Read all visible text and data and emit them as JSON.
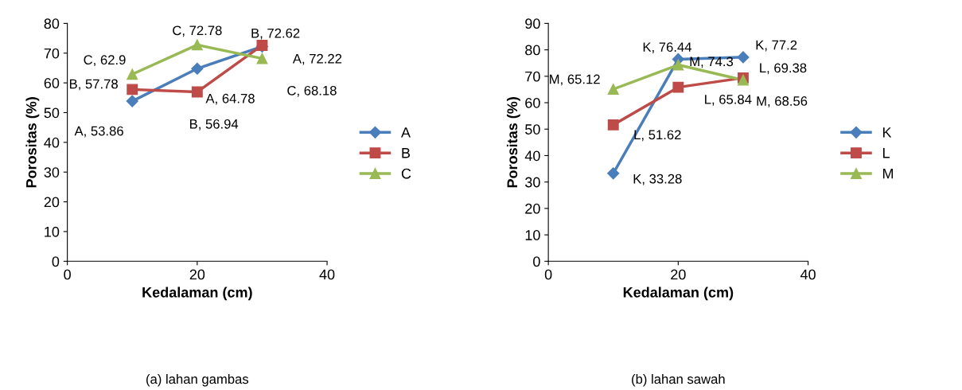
{
  "chart_data": [
    {
      "type": "line",
      "xlabel": "Kedalaman (cm)",
      "ylabel": "Porositas (%)",
      "x": [
        10,
        20,
        30
      ],
      "xlim": [
        0,
        40
      ],
      "xticks": [
        0,
        20,
        40
      ],
      "ylim": [
        0,
        80
      ],
      "yticks": [
        0,
        10,
        20,
        30,
        40,
        50,
        60,
        70,
        80
      ],
      "grid": false,
      "legend": "right",
      "annotations": [
        "(a) lahan gambas"
      ],
      "series": [
        {
          "name": "A",
          "color": "#4a7ebb",
          "marker": "diamond",
          "values": [
            53.86,
            64.78,
            72.22
          ],
          "value_labels": [
            "A, 53.86",
            "A, 64.78",
            "A, 72.22"
          ]
        },
        {
          "name": "B",
          "color": "#be4b48",
          "marker": "square",
          "values": [
            57.78,
            56.94,
            72.62
          ],
          "value_labels": [
            "B, 57.78",
            "B, 56.94",
            "B, 72.62"
          ]
        },
        {
          "name": "C",
          "color": "#98b954",
          "marker": "triangle",
          "values": [
            62.9,
            72.78,
            68.18
          ],
          "value_labels": [
            "C, 62.9",
            "C, 72.78",
            "C, 68.18"
          ]
        }
      ]
    },
    {
      "type": "line",
      "xlabel": "Kedalaman (cm)",
      "ylabel": "Porositas (%)",
      "x": [
        10,
        20,
        30
      ],
      "xlim": [
        0,
        40
      ],
      "xticks": [
        0,
        20,
        40
      ],
      "ylim": [
        0,
        90
      ],
      "yticks": [
        0,
        10,
        20,
        30,
        40,
        50,
        60,
        70,
        80,
        90
      ],
      "grid": false,
      "legend": "right",
      "annotations": [
        "(b) lahan sawah"
      ],
      "series": [
        {
          "name": "K",
          "color": "#4a7ebb",
          "marker": "diamond",
          "values": [
            33.28,
            76.44,
            77.2
          ],
          "value_labels": [
            "K, 33.28",
            "K, 76.44",
            "K, 77.2"
          ]
        },
        {
          "name": "L",
          "color": "#be4b48",
          "marker": "square",
          "values": [
            51.62,
            65.84,
            69.38
          ],
          "value_labels": [
            "L, 51.62",
            "L, 65.84",
            "L, 69.38"
          ]
        },
        {
          "name": "M",
          "color": "#98b954",
          "marker": "triangle",
          "values": [
            65.12,
            74.3,
            68.56
          ],
          "value_labels": [
            "M, 65.12",
            "M, 74.3",
            "M, 68.56"
          ]
        }
      ]
    }
  ]
}
